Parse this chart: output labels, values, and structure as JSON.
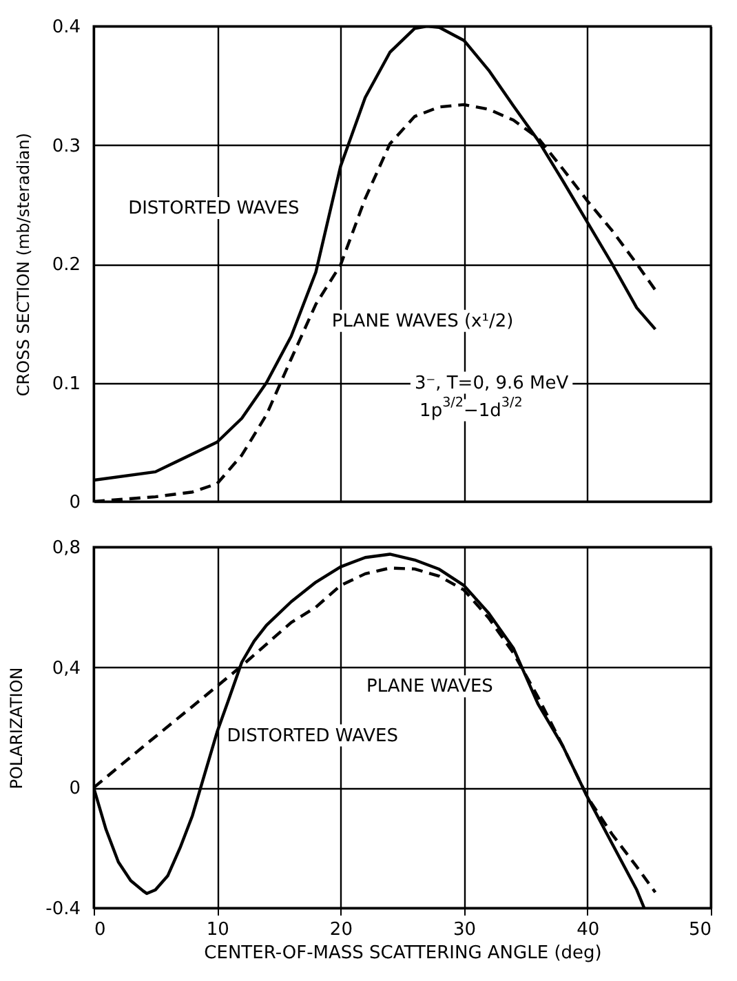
{
  "chart_data": [
    {
      "type": "line",
      "ylabel": "CROSS SECTION (mb/steradian)",
      "xlim": [
        0,
        50
      ],
      "xticks": [
        0,
        10,
        20,
        30,
        40,
        50
      ],
      "ylim": [
        0,
        0.4
      ],
      "yticks": [
        0,
        0.1,
        0.2,
        0.3,
        0.4
      ],
      "grid": true,
      "tick_labels": "y",
      "marker": "none",
      "series": [
        {
          "color": "#000000",
          "line_style": "solid",
          "x": [
            0,
            5,
            10,
            12,
            14,
            16,
            18,
            20,
            22,
            24,
            26,
            27,
            28,
            30,
            32,
            34,
            36,
            38,
            40,
            42,
            44,
            45.5
          ],
          "values": [
            0.018,
            0.025,
            0.05,
            0.07,
            0.1,
            0.139,
            0.193,
            0.282,
            0.34,
            0.378,
            0.398,
            0.4,
            0.399,
            0.388,
            0.363,
            0.333,
            0.304,
            0.27,
            0.235,
            0.2,
            0.163,
            0.145
          ]
        },
        {
          "color": "#000000",
          "line_style": "dashed",
          "x": [
            0,
            5,
            8,
            10,
            12,
            14,
            16,
            18,
            20,
            22,
            24,
            26,
            28,
            30,
            32,
            34,
            36,
            38,
            40,
            42,
            44,
            45.5
          ],
          "values": [
            0,
            0.004,
            0.008,
            0.015,
            0.039,
            0.073,
            0.12,
            0.166,
            0.199,
            0.255,
            0.301,
            0.324,
            0.332,
            0.334,
            0.33,
            0.321,
            0.306,
            0.28,
            0.253,
            0.228,
            0.2,
            0.178
          ]
        }
      ],
      "annotations": [
        "DISTORTED WAVES",
        "PLANE WAVES (x¹/2)",
        "3⁻, T=0, 9.6 MeV",
        "1p$^{3/2}$−1d$^{3/2}$"
      ]
    },
    {
      "type": "line",
      "xlabel": "CENTER-OF-MASS SCATTERING ANGLE (deg)",
      "ylabel": "POLARIZATION",
      "xlim": [
        0,
        50
      ],
      "xticks": [
        0,
        10,
        20,
        30,
        40,
        50
      ],
      "ylim": [
        -0.4,
        0.8
      ],
      "yticks": [
        {
          "value": -0.4,
          "label": "-0.4"
        },
        0,
        {
          "value": 0.4,
          "label": "0,4"
        },
        {
          "value": 0.8,
          "label": "0,8"
        }
      ],
      "grid": true,
      "marker": "none",
      "series": [
        {
          "color": "#000000",
          "line_style": "solid",
          "x": [
            0,
            1,
            2,
            3,
            4,
            4.3,
            5,
            6,
            7,
            8,
            9,
            10,
            11,
            12,
            13,
            14,
            16,
            18,
            20,
            22,
            24,
            26,
            28,
            30,
            32,
            34,
            36,
            38,
            40,
            42,
            44,
            44.6
          ],
          "values": [
            0,
            -0.139,
            -0.247,
            -0.309,
            -0.343,
            -0.352,
            -0.34,
            -0.293,
            -0.2,
            -0.093,
            0.046,
            0.185,
            0.3,
            0.417,
            0.487,
            0.54,
            0.618,
            0.683,
            0.734,
            0.765,
            0.776,
            0.757,
            0.726,
            0.672,
            0.58,
            0.464,
            0.278,
            0.139,
            -0.031,
            -0.186,
            -0.34,
            -0.4
          ]
        },
        {
          "color": "#000000",
          "line_style": "dashed",
          "x": [
            0,
            4,
            8,
            12,
            16,
            18,
            20,
            22,
            24,
            26,
            28,
            30,
            32,
            34,
            36,
            38,
            40,
            42,
            44,
            45.5
          ],
          "values": [
            0,
            0.136,
            0.27,
            0.405,
            0.549,
            0.6,
            0.672,
            0.711,
            0.73,
            0.727,
            0.703,
            0.657,
            0.564,
            0.448,
            0.301,
            0.139,
            -0.031,
            -0.155,
            -0.263,
            -0.348
          ]
        }
      ],
      "annotations": [
        "PLANE WAVES",
        "DISTORTED WAVES"
      ]
    }
  ]
}
